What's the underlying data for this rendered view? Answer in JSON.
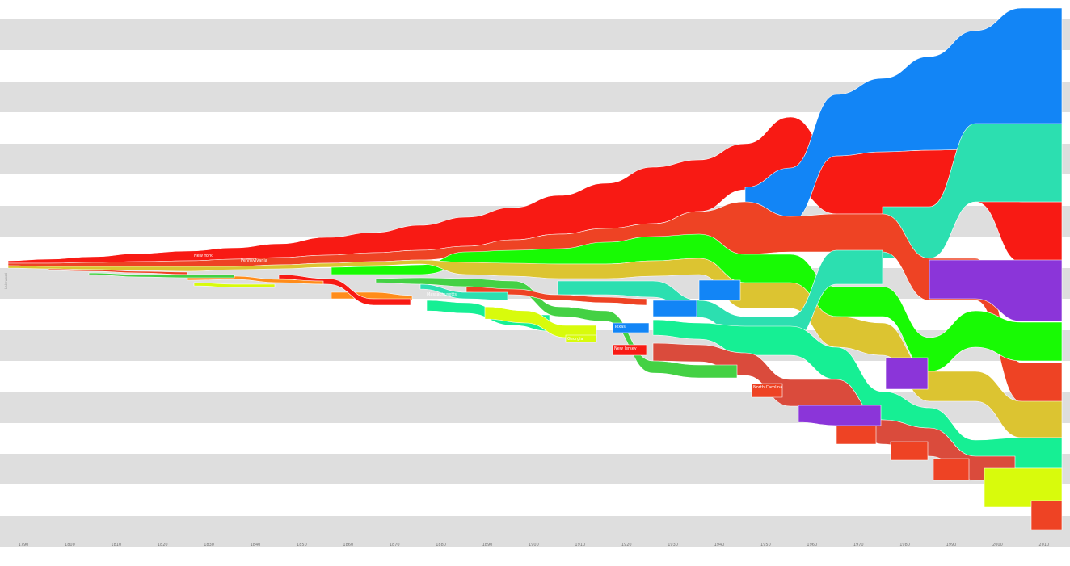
{
  "chart_data": {
    "type": "area",
    "subtype": "stacked-rank-streams",
    "title": "",
    "xlabel": "",
    "ylabel": "",
    "y_side_label": "Lakewood",
    "x_ticks": [
      "1790",
      "1800",
      "1810",
      "1820",
      "1830",
      "1840",
      "1850",
      "1860",
      "1870",
      "1880",
      "1890",
      "1900",
      "1910",
      "1920",
      "1930",
      "1940",
      "1950",
      "1960",
      "1970",
      "1980",
      "1990",
      "2000",
      "2010"
    ],
    "grid": "alternating horizontal bands",
    "colors": {
      "band": "#dedede",
      "red": "#f81a14",
      "orange_red": "#ee4324",
      "green": "#18fa04",
      "yellow": "#dcc431",
      "teal": "#2cdfb0",
      "mint": "#16ef94",
      "blue": "#1285f6",
      "purple": "#8b35d9",
      "brick": "#da4b3c",
      "lime": "#d8fb0c",
      "darkgreen": "#44d144",
      "orange": "#ff8c1a"
    },
    "stream_labels": [
      {
        "text": "New York",
        "x": "1820"
      },
      {
        "text": "Pennsylvania",
        "x": "1830"
      },
      {
        "text": "Massachusetts",
        "x": "1880"
      },
      {
        "text": "Georgia",
        "x": "1910"
      },
      {
        "text": "Texas",
        "x": "1920"
      },
      {
        "text": "New Jersey",
        "x": "1920"
      },
      {
        "text": "North Carolina",
        "x": "1950"
      }
    ]
  }
}
